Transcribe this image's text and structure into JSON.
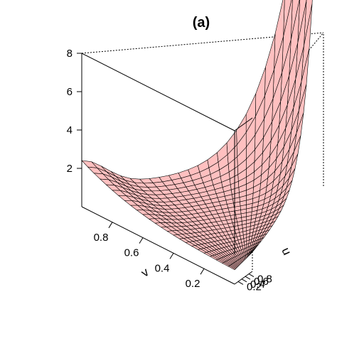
{
  "chart_data": {
    "type": "surface",
    "title": "(a)",
    "xlabel": "u",
    "ylabel": "v",
    "zlabel": "",
    "xlim": [
      0,
      1
    ],
    "ylim": [
      0,
      1
    ],
    "zlim": [
      0,
      8
    ],
    "x_ticks": [
      "0.2",
      "0.4",
      "0.6",
      "0.8"
    ],
    "y_ticks": [
      "0.2",
      "0.4",
      "0.6",
      "0.8"
    ],
    "z_ticks": [
      "2",
      "4",
      "6",
      "8"
    ],
    "grid": false,
    "surface_color": "#ffc0c0",
    "mesh_color": "#000000",
    "mesh_resolution": 25,
    "surface_shape": "bowl-shaped density, near 1 at center, rising to about 8 at the far corner (u=1, v=1), about 2.2 at the left corner (u=0, v=1), about 0.9 at the near corner (u=0.1, v=0.1)"
  }
}
